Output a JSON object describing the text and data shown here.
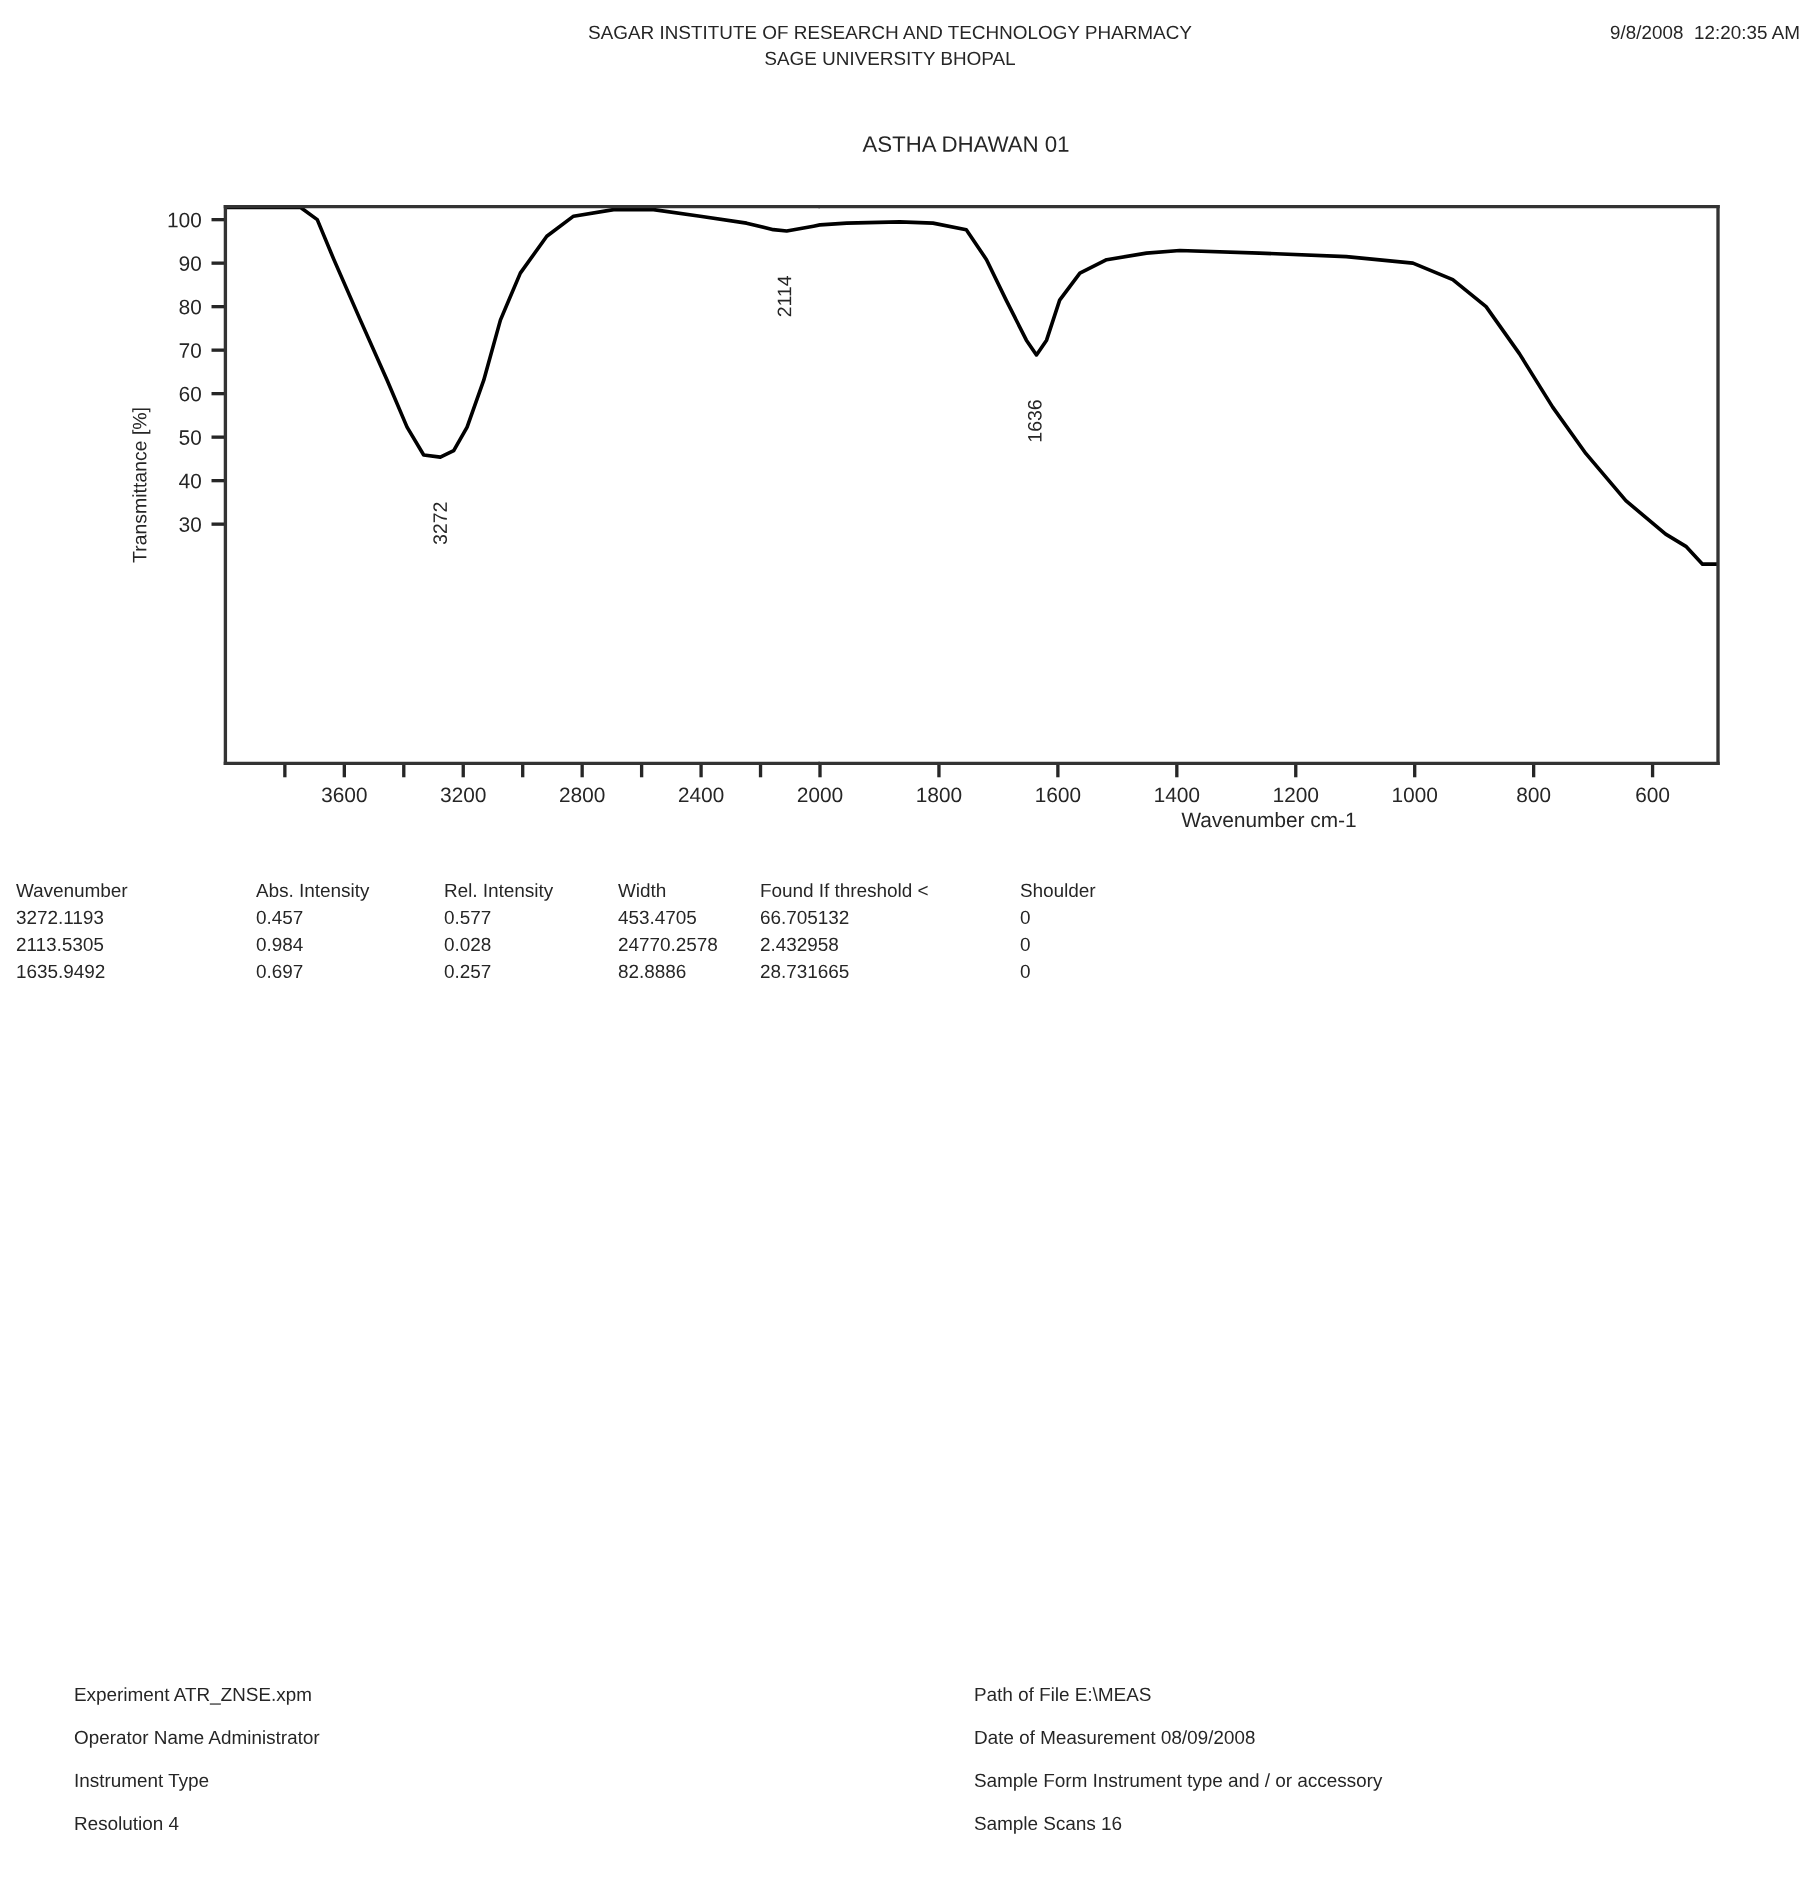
{
  "chart_data": [
    {
      "type": "line",
      "ylabel": "Transmittance [%]",
      "series": [
        {
          "color": "#000000",
          "x": [
            3998,
            3792,
            3747,
            3691,
            3635,
            3546,
            3456,
            3389,
            3333,
            3277,
            3232,
            3187,
            3131,
            3075,
            3008,
            2919,
            2829,
            2694,
            2560,
            2403,
            2247,
            2157,
            2112,
            2022,
            2000
          ],
          "values": [
            102.8,
            102.8,
            102.8,
            100,
            90.8,
            76.9,
            63.1,
            52.3,
            45.9,
            45.4,
            46.9,
            52.3,
            63.1,
            76.9,
            87.7,
            96.2,
            100.8,
            102.3,
            102.3,
            100.8,
            99.2,
            97.7,
            97.4,
            98.5,
            98.8
          ]
        }
      ],
      "xlim": [
        4000,
        2000
      ],
      "ylim": [
        -25,
        103
      ],
      "xticks": [
        {
          "value": 3800,
          "label": null
        },
        3600,
        {
          "value": 3400,
          "label": null
        },
        3200,
        {
          "value": 3000,
          "label": null
        },
        2800,
        {
          "value": 2600,
          "label": null
        },
        2400,
        {
          "value": 2200,
          "label": null
        }
      ],
      "yticks": [
        30,
        40,
        50,
        60,
        70,
        80,
        90,
        100
      ],
      "grid": false,
      "legend": false,
      "marker": "none",
      "line_style": "solid",
      "annotations": [
        {
          "text": "3272",
          "x": 3272,
          "y": 45.4
        },
        {
          "text": "2114",
          "x": 2114,
          "y": 97.4
        },
        "SAGAR INSTITUTE OF RESEARCH AND TECHNOLOGY PHARMACY",
        "SAGE UNIVERSITY BHOPAL",
        "9/8/2008  12:20:35 AM",
        "Wavenumber",
        "Abs. Intensity",
        "Rel. Intensity",
        "Width",
        "Found If threshold <",
        "Shoulder",
        "3272.1193",
        "0.457",
        "0.577",
        "453.4705",
        "66.705132",
        "0",
        "2113.5305",
        "0.984",
        "0.028",
        "24770.2578",
        "2.432958",
        "0",
        "1635.9492",
        "0.697",
        "0.257",
        "82.8886",
        "28.731665",
        "0",
        "Experiment ATR_ZNSE.xpm",
        "Path of File E:\\MEAS",
        "Operator Name Administrator",
        "Date of Measurement 08/09/2008",
        "Instrument Type",
        "Sample Form Instrument type and / or accessory",
        "Resolution 4",
        "Sample Scans 16"
      ]
    },
    {
      "type": "line",
      "title": "ASTHA DHAWAN 01",
      "xlabel": "Wavenumber cm-1",
      "series": [
        {
          "color": "#000000",
          "x": [
            2000,
            1955,
            1866,
            1810,
            1754,
            1720,
            1687,
            1653,
            1636,
            1619,
            1597,
            1563,
            1518,
            1451,
            1395,
            1261,
            1115,
            1003,
            936,
            880,
            824,
            768,
            712,
            645,
            578,
            544,
            516,
            491
          ],
          "values": [
            98.8,
            99.2,
            99.5,
            99.2,
            97.7,
            90.8,
            81.5,
            72.3,
            68.9,
            72.3,
            81.5,
            87.7,
            90.8,
            92.3,
            92.9,
            92.3,
            91.5,
            90,
            86.2,
            80,
            69.2,
            56.9,
            46.2,
            35.4,
            27.7,
            24.9,
            20.8,
            20.8
          ]
        }
      ],
      "xlim": [
        2000,
        490
      ],
      "ylim": [
        -25,
        103
      ],
      "xticks": [
        2000,
        1800,
        1600,
        1400,
        1200,
        1000,
        800,
        600
      ],
      "tick_labels": "x",
      "grid": false,
      "legend": false,
      "marker": "none",
      "line_style": "solid",
      "annotations": [
        {
          "text": "1636",
          "x": 1636,
          "y": 68.9
        }
      ]
    }
  ]
}
